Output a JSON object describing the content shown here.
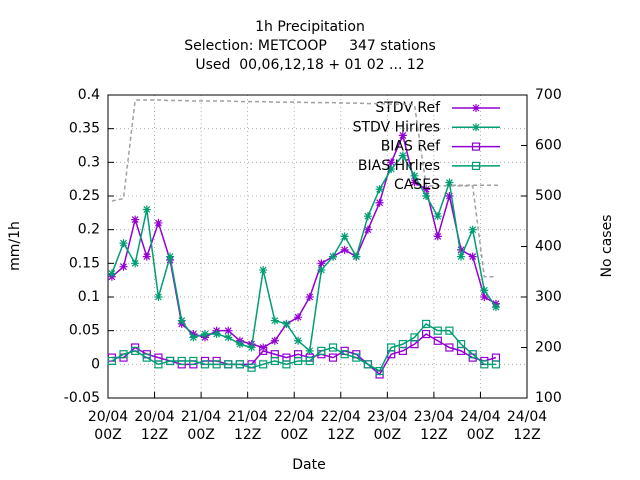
{
  "chart_data": {
    "type": "line",
    "title": "1h Precipitation",
    "subtitle": "Selection: METCOOP     347 stations",
    "subtitle2": "Used  00,06,12,18 + 01 02 ... 12",
    "xlabel": "Date",
    "ylabel": "mm/1h",
    "y2label": "No cases",
    "x": [
      1,
      4,
      7,
      10,
      13,
      16,
      19,
      22,
      25,
      28,
      31,
      34,
      37,
      40,
      43,
      46,
      49,
      52,
      55,
      58,
      61,
      64,
      67,
      70,
      73,
      76,
      79,
      82,
      85,
      88,
      91,
      94,
      97,
      100
    ],
    "series": [
      {
        "name": "STDV Ref",
        "color": "#9400d3",
        "marker": "star",
        "values": [
          0.13,
          0.145,
          0.215,
          0.16,
          0.21,
          0.155,
          0.06,
          0.045,
          0.04,
          0.05,
          0.05,
          0.035,
          0.03,
          0.025,
          0.035,
          0.06,
          0.07,
          0.1,
          0.15,
          0.16,
          0.17,
          0.16,
          0.2,
          0.24,
          0.3,
          0.34,
          0.27,
          0.26,
          0.19,
          0.25,
          0.17,
          0.16,
          0.1,
          0.09
        ]
      },
      {
        "name": "STDV Hirlres",
        "color": "#009e73",
        "marker": "star",
        "values": [
          0.135,
          0.18,
          0.15,
          0.23,
          0.1,
          0.16,
          0.065,
          0.04,
          0.045,
          0.045,
          0.04,
          0.03,
          0.025,
          0.14,
          0.065,
          0.06,
          0.035,
          0.02,
          0.14,
          0.16,
          0.19,
          0.16,
          0.22,
          0.26,
          0.29,
          0.31,
          0.28,
          0.25,
          0.22,
          0.27,
          0.16,
          0.2,
          0.11,
          0.085
        ]
      },
      {
        "name": "BIAS Ref",
        "color": "#9400d3",
        "marker": "square",
        "values": [
          0.01,
          0.01,
          0.025,
          0.015,
          0.01,
          0.005,
          0,
          0,
          0.005,
          0.005,
          0,
          0,
          0,
          0.02,
          0.015,
          0.01,
          0.015,
          0.01,
          0.015,
          0.01,
          0.02,
          0.015,
          0,
          -0.015,
          0.015,
          0.02,
          0.03,
          0.045,
          0.035,
          0.025,
          0.02,
          0.01,
          0.005,
          0.01
        ]
      },
      {
        "name": "BIAS Hirlres",
        "color": "#009e73",
        "marker": "square",
        "values": [
          0.005,
          0.015,
          0.02,
          0.01,
          0,
          0.005,
          0.005,
          0.005,
          0,
          0,
          0,
          0,
          -0.005,
          0,
          0.005,
          0,
          0.005,
          0.005,
          0.02,
          0.025,
          0.015,
          0.01,
          0,
          -0.01,
          0.025,
          0.03,
          0.04,
          0.06,
          0.05,
          0.05,
          0.03,
          0.015,
          0,
          0
        ]
      },
      {
        "name": "CASES",
        "color": "#a0a0a0",
        "marker": "none",
        "dashed": true,
        "axis": "y2",
        "values": [
          490,
          495,
          690,
          690,
          690,
          689,
          689,
          688,
          688,
          688,
          688,
          687,
          687,
          687,
          686,
          686,
          686,
          685,
          685,
          685,
          684,
          684,
          683,
          683,
          682,
          682,
          681,
          520,
          520,
          520,
          520,
          520,
          340,
          340
        ]
      }
    ],
    "xlim": [
      0,
      108
    ],
    "xticks": [
      {
        "value": 0,
        "label": "20/04\n00Z"
      },
      {
        "value": 12,
        "label": "20/04\n12Z"
      },
      {
        "value": 24,
        "label": "21/04\n00Z"
      },
      {
        "value": 36,
        "label": "21/04\n12Z"
      },
      {
        "value": 48,
        "label": "22/04\n00Z"
      },
      {
        "value": 60,
        "label": "22/04\n12Z"
      },
      {
        "value": 72,
        "label": "23/04\n00Z"
      },
      {
        "value": 84,
        "label": "23/04\n12Z"
      },
      {
        "value": 96,
        "label": "24/04\n00Z"
      },
      {
        "value": 108,
        "label": "24/04\n12Z"
      }
    ],
    "ylim": [
      -0.05,
      0.4
    ],
    "yticks": [
      -0.05,
      0,
      0.05,
      0.1,
      0.15,
      0.2,
      0.25,
      0.3,
      0.35,
      0.4
    ],
    "y2lim": [
      100,
      700
    ],
    "y2ticks": [
      100,
      200,
      300,
      400,
      500,
      600,
      700
    ],
    "grid": true,
    "legend": "top-right"
  }
}
